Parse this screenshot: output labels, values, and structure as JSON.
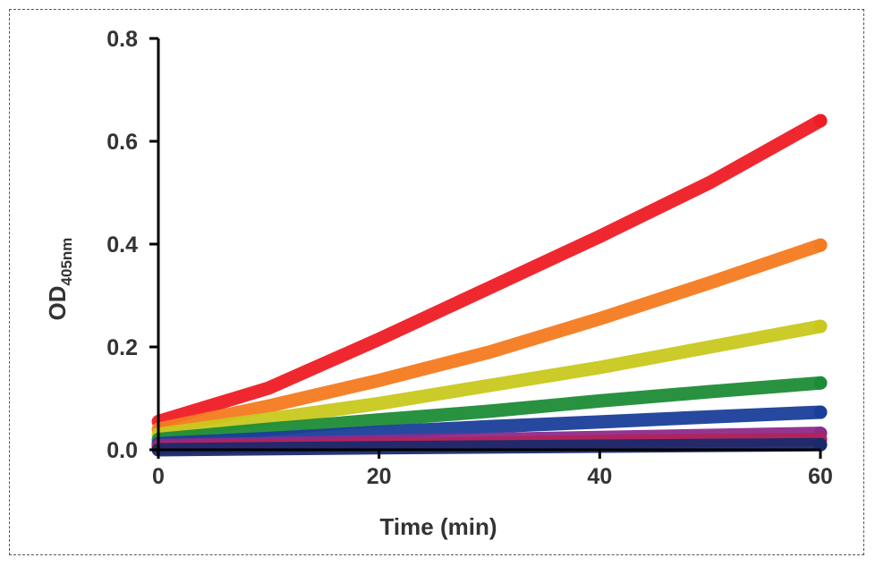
{
  "chart_data": {
    "type": "scatter",
    "xlabel": "Time (min)",
    "ylabel": {
      "main": "OD",
      "sub": "405nm"
    },
    "xlim": [
      0,
      60
    ],
    "ylim": [
      0,
      0.8
    ],
    "xticks": [
      "0",
      "20",
      "40",
      "60"
    ],
    "yticks": [
      "0.0",
      "0.2",
      "0.4",
      "0.6",
      "0.8"
    ],
    "grid": false,
    "legend": "none",
    "series": [
      {
        "color": "#ee1c25",
        "points": [
          [
            0,
            0.055
          ],
          [
            10,
            0.12
          ],
          [
            20,
            0.215
          ],
          [
            30,
            0.315
          ],
          [
            40,
            0.415
          ],
          [
            50,
            0.52
          ],
          [
            60,
            0.64
          ]
        ]
      },
      {
        "color": "#f47b20",
        "points": [
          [
            0,
            0.04
          ],
          [
            10,
            0.085
          ],
          [
            20,
            0.135
          ],
          [
            30,
            0.19
          ],
          [
            40,
            0.255
          ],
          [
            50,
            0.325
          ],
          [
            60,
            0.398
          ]
        ]
      },
      {
        "color": "#c8c81e",
        "points": [
          [
            0,
            0.03
          ],
          [
            10,
            0.06
          ],
          [
            20,
            0.09
          ],
          [
            30,
            0.125
          ],
          [
            40,
            0.16
          ],
          [
            50,
            0.2
          ],
          [
            60,
            0.24
          ]
        ]
      },
      {
        "color": "#1e8c37",
        "points": [
          [
            0,
            0.02
          ],
          [
            10,
            0.04
          ],
          [
            20,
            0.058
          ],
          [
            30,
            0.075
          ],
          [
            40,
            0.095
          ],
          [
            50,
            0.113
          ],
          [
            60,
            0.13
          ]
        ]
      },
      {
        "color": "#1a3f9a",
        "points": [
          [
            0,
            0.012
          ],
          [
            10,
            0.022
          ],
          [
            20,
            0.034
          ],
          [
            30,
            0.045
          ],
          [
            40,
            0.054
          ],
          [
            50,
            0.064
          ],
          [
            60,
            0.073
          ]
        ]
      },
      {
        "color": "#8e2a8c",
        "points": [
          [
            0,
            0.008
          ],
          [
            15,
            0.014
          ],
          [
            30,
            0.02
          ],
          [
            45,
            0.026
          ],
          [
            60,
            0.032
          ]
        ]
      },
      {
        "color": "#b0245a",
        "points": [
          [
            0,
            0.004
          ],
          [
            20,
            0.01
          ],
          [
            40,
            0.016
          ],
          [
            60,
            0.02
          ]
        ]
      },
      {
        "color": "#1b2a6b",
        "points": [
          [
            0,
            0.0
          ],
          [
            20,
            0.004
          ],
          [
            40,
            0.007
          ],
          [
            60,
            0.01
          ]
        ]
      }
    ]
  }
}
